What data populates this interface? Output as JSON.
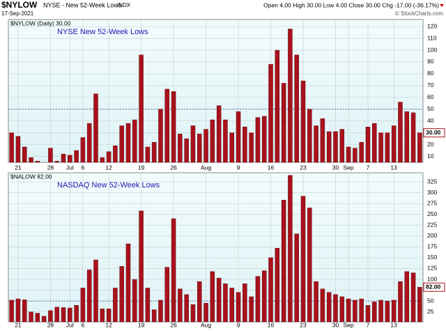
{
  "header": {
    "symbol": "$NYLOW",
    "description": "NYSE - New 52-Week Lows",
    "exchange": "INDX",
    "date": "17-Sep-2021",
    "quote": "Open 4.00  High 30.00  Low 4.00  Close 30.00  Chg -17.00 (-36.17%)",
    "source": "© StockCharts.com"
  },
  "chart_data": [
    {
      "type": "bar",
      "title": "NYSE New 52-Week Lows",
      "legend": "$NYLOW (Daily) 30.00",
      "color": "#a8121c",
      "categories": [
        null,
        "21",
        null,
        null,
        null,
        null,
        "28",
        null,
        null,
        "Jul",
        null,
        "6",
        null,
        null,
        null,
        "12",
        null,
        null,
        null,
        null,
        "19",
        null,
        null,
        null,
        null,
        "26",
        null,
        null,
        null,
        null,
        "Aug",
        null,
        null,
        null,
        null,
        "9",
        null,
        null,
        null,
        null,
        "16",
        null,
        null,
        null,
        null,
        "23",
        null,
        null,
        null,
        null,
        "30",
        null,
        "Sep",
        null,
        null,
        "7",
        null,
        null,
        null,
        "13",
        null,
        null,
        null,
        null
      ],
      "values": [
        30,
        27,
        18,
        9,
        6,
        5,
        17,
        6,
        12,
        11,
        15,
        26,
        38,
        63,
        9,
        14,
        19,
        36,
        38,
        41,
        96,
        18,
        22,
        50,
        67,
        65,
        29,
        25,
        36,
        29,
        33,
        41,
        53,
        41,
        30,
        48,
        35,
        30,
        43,
        44,
        88,
        100,
        72,
        118,
        96,
        74,
        50,
        36,
        42,
        31,
        31,
        33,
        18,
        17,
        22,
        35,
        38,
        30,
        30,
        36,
        56,
        48,
        47,
        30
      ],
      "last_value_label": "30.00",
      "reference_line": 50,
      "ylim": [
        5,
        126
      ],
      "yticks": [
        10,
        20,
        30,
        40,
        50,
        60,
        70,
        80,
        90,
        100,
        110,
        120
      ],
      "grid": true
    },
    {
      "type": "bar",
      "title": "NASDAQ New 52-Week Lows",
      "legend": "$NALOW 82.00",
      "color": "#a8121c",
      "categories": [
        null,
        "21",
        null,
        null,
        null,
        null,
        "28",
        null,
        null,
        "Jul",
        null,
        "6",
        null,
        null,
        null,
        "12",
        null,
        null,
        null,
        null,
        "19",
        null,
        null,
        null,
        null,
        "26",
        null,
        null,
        null,
        null,
        "Aug",
        null,
        null,
        null,
        null,
        "9",
        null,
        null,
        null,
        null,
        "16",
        null,
        null,
        null,
        null,
        "23",
        null,
        null,
        null,
        null,
        "30",
        null,
        "Sep",
        null,
        null,
        "7",
        null,
        null,
        null,
        "13",
        null,
        null,
        null,
        null
      ],
      "values": [
        52,
        55,
        53,
        25,
        22,
        15,
        28,
        36,
        35,
        34,
        40,
        80,
        122,
        145,
        32,
        32,
        80,
        130,
        182,
        100,
        258,
        80,
        30,
        52,
        128,
        240,
        78,
        65,
        42,
        95,
        45,
        118,
        103,
        90,
        80,
        70,
        90,
        60,
        107,
        120,
        150,
        172,
        283,
        340,
        205,
        292,
        265,
        95,
        78,
        70,
        65,
        60,
        55,
        52,
        55,
        40,
        48,
        52,
        50,
        52,
        95,
        118,
        115,
        82
      ],
      "last_value_label": "82.00",
      "reference_line": 50,
      "ylim": [
        2,
        346
      ],
      "yticks": [
        25,
        50,
        75,
        100,
        125,
        150,
        175,
        200,
        225,
        250,
        275,
        300,
        325
      ],
      "grid": true
    }
  ]
}
